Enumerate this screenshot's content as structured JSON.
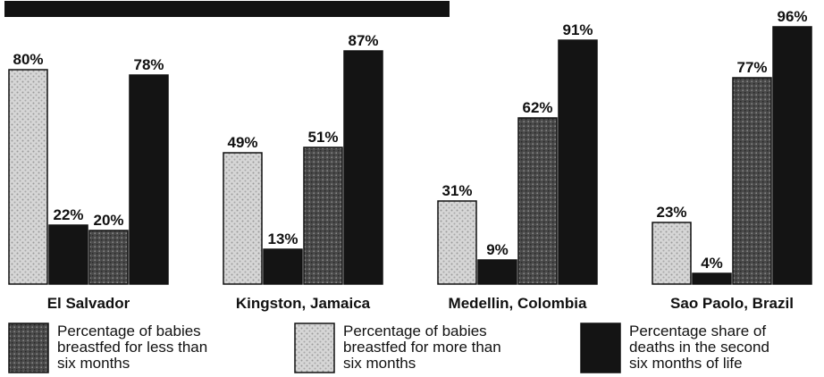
{
  "chart_data": {
    "type": "bar",
    "title": "",
    "categories": [
      "El Salvador",
      "Kingston, Jamaica",
      "Medellin, Colombia",
      "Sao Paolo, Brazil"
    ],
    "series": [
      {
        "name": "Percentage of babies breastfed for more than six months",
        "values": [
          80,
          49,
          31,
          23
        ],
        "labels": [
          "80%",
          "49%",
          "31%",
          "23%"
        ],
        "color": "#cfcfcf"
      },
      {
        "name": "Percentage share of deaths in the second six months of life",
        "values": [
          22,
          13,
          9,
          4
        ],
        "labels": [
          "22%",
          "13%",
          "9%",
          "4%"
        ],
        "color": "#141414"
      },
      {
        "name": "Percentage of babies breastfed for less than six months",
        "values": [
          20,
          51,
          62,
          77
        ],
        "labels": [
          "20%",
          "51%",
          "62%",
          "77%"
        ],
        "color": "#5c5c5c"
      },
      {
        "name": "Percentage share of deaths in the second six months of life",
        "values": [
          78,
          87,
          91,
          96
        ],
        "labels": [
          "78%",
          "87%",
          "91%",
          "96%"
        ],
        "color": "#141414"
      }
    ],
    "ylim": [
      0,
      100
    ],
    "grid": false,
    "legend": {
      "placement": "bottom",
      "items": [
        {
          "lines": [
            "Percentage of babies",
            "breastfed for less than",
            "six months"
          ],
          "color": "#5c5c5c"
        },
        {
          "lines": [
            "Percentage of babies",
            "breastfed for more than",
            "six months"
          ],
          "color": "#cfcfcf"
        },
        {
          "lines": [
            "Percentage share of",
            "deaths in the second",
            "six months of life"
          ],
          "color": "#141414"
        }
      ]
    }
  }
}
